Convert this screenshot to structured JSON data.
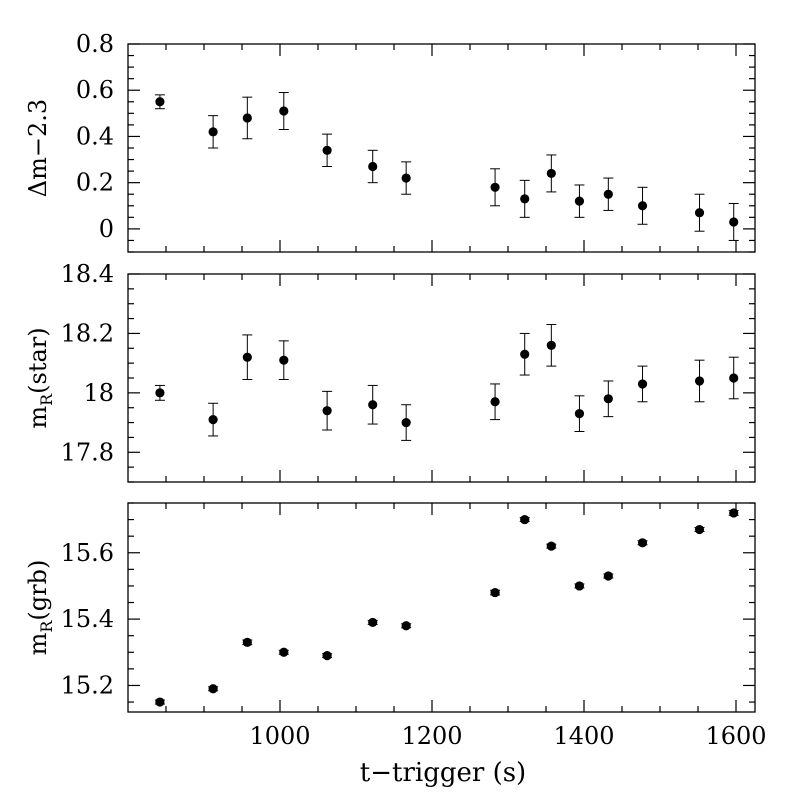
{
  "chart_data": {
    "type": "scatter",
    "layout": "3 vertically stacked panels sharing x axis",
    "xlabel": "t−trigger (s)",
    "xlim": [
      800,
      1625
    ],
    "xticks": [
      1000,
      1200,
      1400,
      1600
    ],
    "x": [
      842,
      912,
      957,
      1005,
      1062,
      1122,
      1166,
      1283,
      1322,
      1357,
      1394,
      1432,
      1477,
      1552,
      1597
    ],
    "panels": [
      {
        "ylabel_main": "Δm−2.3",
        "ylabel_sub": "",
        "ylim": [
          -0.1,
          0.8
        ],
        "yticks": [
          0,
          0.2,
          0.4,
          0.6,
          0.8
        ],
        "ytick_labels": [
          "0",
          "0.2",
          "0.4",
          "0.6",
          "0.8"
        ],
        "y": [
          0.55,
          0.42,
          0.48,
          0.51,
          0.34,
          0.27,
          0.22,
          0.18,
          0.13,
          0.24,
          0.12,
          0.15,
          0.1,
          0.07,
          0.03
        ],
        "yerr": [
          0.03,
          0.07,
          0.09,
          0.08,
          0.07,
          0.07,
          0.07,
          0.08,
          0.08,
          0.08,
          0.07,
          0.07,
          0.08,
          0.08,
          0.08
        ]
      },
      {
        "ylabel_main": "m",
        "ylabel_sub": "R",
        "ylabel_suffix": "(star)",
        "ylim": [
          17.7,
          18.4
        ],
        "yticks": [
          17.8,
          18.0,
          18.2,
          18.4
        ],
        "ytick_labels": [
          "17.8",
          "18",
          "18.2",
          "18.4"
        ],
        "y": [
          18.0,
          17.91,
          18.12,
          18.11,
          17.94,
          17.96,
          17.9,
          17.97,
          18.13,
          18.16,
          17.93,
          17.98,
          18.03,
          18.04,
          18.05
        ],
        "yerr": [
          0.025,
          0.055,
          0.075,
          0.065,
          0.065,
          0.065,
          0.06,
          0.06,
          0.07,
          0.07,
          0.06,
          0.06,
          0.06,
          0.07,
          0.07
        ]
      },
      {
        "ylabel_main": "m",
        "ylabel_sub": "R",
        "ylabel_suffix": "(grb)",
        "ylim": [
          15.12,
          15.75
        ],
        "yticks": [
          15.2,
          15.4,
          15.6
        ],
        "ytick_labels": [
          "15.2",
          "15.4",
          "15.6"
        ],
        "y": [
          15.15,
          15.19,
          15.33,
          15.3,
          15.29,
          15.39,
          15.38,
          15.48,
          15.7,
          15.62,
          15.5,
          15.53,
          15.63,
          15.67,
          15.72
        ],
        "yerr": [
          0.006,
          0.006,
          0.007,
          0.006,
          0.006,
          0.006,
          0.006,
          0.007,
          0.006,
          0.006,
          0.006,
          0.006,
          0.006,
          0.006,
          0.007
        ]
      }
    ]
  }
}
